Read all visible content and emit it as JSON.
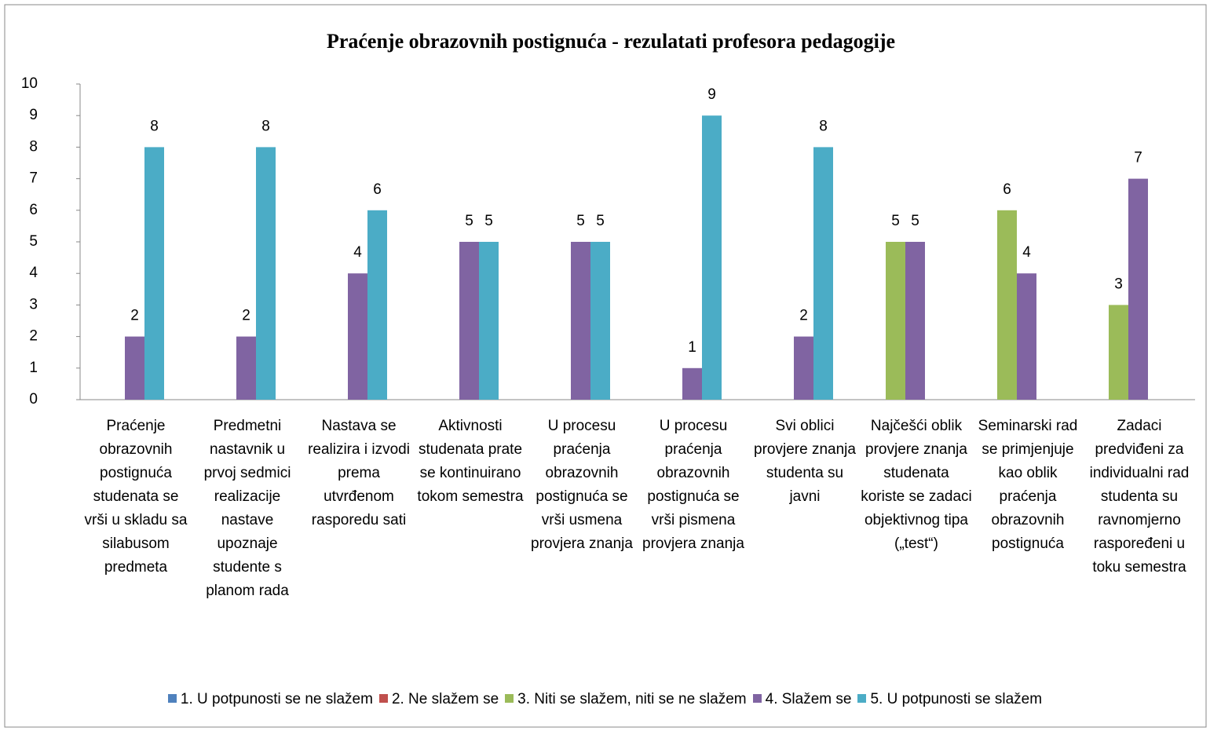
{
  "chart_data": {
    "type": "bar",
    "title": "Praćenje obrazovnih postignuća - rezulatati profesora pedagogije",
    "categories": [
      "Praćenje obrazovnih postignuća studenata se vrši u skladu sa silabusom predmeta",
      "Predmetni nastavnik u prvoj sedmici realizacije nastave upoznaje studente s planom rada",
      "Nastava se realizira i izvodi prema utvrđenom rasporedu sati",
      "Aktivnosti studenata prate se kontinuirano tokom semestra",
      "U procesu praćenja obrazovnih postignuća se vrši usmena provjera znanja",
      "U procesu praćenja obrazovnih postignuća se vrši pismena provjera znanja",
      "Svi oblici provjere znanja studenta su javni",
      "Najčešći oblik provjere znanja studenata koriste se zadaci objektivnog tipa („test“)",
      "Seminarski rad se primjenjuje kao oblik praćenja obrazovnih postignuća",
      "Zadaci predviđeni za individualni rad studenta su ravnomjerno raspoređeni u toku semestra"
    ],
    "series": [
      {
        "name": "1. U potpunosti se ne slažem",
        "color": "#4f81bd",
        "values": [
          null,
          null,
          null,
          null,
          null,
          null,
          null,
          null,
          null,
          null
        ]
      },
      {
        "name": "2. Ne slažem se",
        "color": "#c0504d",
        "values": [
          null,
          null,
          null,
          null,
          null,
          null,
          null,
          null,
          null,
          null
        ]
      },
      {
        "name": "3. Niti se slažem, niti se ne slažem",
        "color": "#9bbb59",
        "values": [
          null,
          null,
          null,
          null,
          null,
          null,
          null,
          5,
          6,
          3
        ]
      },
      {
        "name": "4. Slažem se",
        "color": "#8064a2",
        "values": [
          2,
          2,
          4,
          5,
          5,
          1,
          2,
          5,
          4,
          7
        ]
      },
      {
        "name": "5. U potpunosti se slažem",
        "color": "#4bacc6",
        "values": [
          8,
          8,
          6,
          5,
          5,
          9,
          8,
          null,
          null,
          null
        ]
      }
    ],
    "ylim": [
      0,
      10
    ],
    "yticks": [
      0,
      1,
      2,
      3,
      4,
      5,
      6,
      7,
      8,
      9,
      10
    ],
    "grid": false,
    "legend": "bottom"
  }
}
